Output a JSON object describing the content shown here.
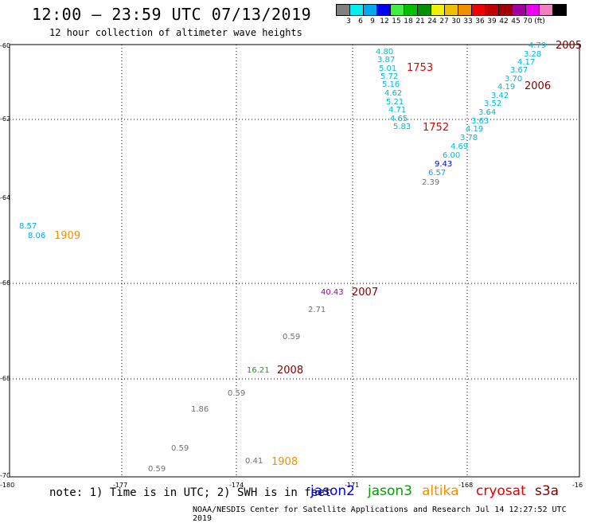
{
  "title": "12:00 – 23:59 UTC 07/13/2019",
  "subtitle": "12 hour collection of altimeter wave heights",
  "colorbar": {
    "colors": [
      "#808080",
      "#00f0f0",
      "#00a8f0",
      "#0000f0",
      "#40f040",
      "#00c000",
      "#009000",
      "#f0f000",
      "#f0c000",
      "#f09000",
      "#f00000",
      "#c00000",
      "#a00000",
      "#a000a0",
      "#f000f0",
      "#f080c0",
      "#000000"
    ],
    "labels": [
      "3",
      "6",
      "9",
      "12",
      "15",
      "18",
      "21",
      "24",
      "27",
      "30",
      "33",
      "36",
      "39",
      "42",
      "45",
      "70",
      "(ft)"
    ]
  },
  "axes": {
    "y_ticks": [
      "-60",
      "-62",
      "-64",
      "-66",
      "-68",
      "-70"
    ],
    "x_ticks": [
      "-180",
      "-177",
      "-174",
      "-171",
      "-168",
      "-16"
    ]
  },
  "readings": [
    {
      "text": "4.80",
      "color": "#00b8d8"
    },
    {
      "text": "3.87",
      "color": "#00b8d8"
    },
    {
      "text": "5.01",
      "color": "#00b8d8"
    },
    {
      "text": "5.72",
      "color": "#00b8d8"
    },
    {
      "text": "5.16",
      "color": "#00b8d8"
    },
    {
      "text": "4.62",
      "color": "#00b8d8"
    },
    {
      "text": "5.21",
      "color": "#00b8d8"
    },
    {
      "text": "4.71",
      "color": "#00b8d8"
    },
    {
      "text": "4.65",
      "color": "#00b8d8"
    },
    {
      "text": "5.83",
      "color": "#00b8d8"
    },
    {
      "text": "4.79",
      "color": "#00b8d8"
    },
    {
      "text": "3.28",
      "color": "#00b8d8"
    },
    {
      "text": "4.17",
      "color": "#00b8d8"
    },
    {
      "text": "3.67",
      "color": "#00b8d8"
    },
    {
      "text": "3.70",
      "color": "#00b8d8"
    },
    {
      "text": "4.19",
      "color": "#00b8d8"
    },
    {
      "text": "3.42",
      "color": "#00b8d8"
    },
    {
      "text": "3.52",
      "color": "#00b8d8"
    },
    {
      "text": "3.64",
      "color": "#00b8d8"
    },
    {
      "text": "3.63",
      "color": "#00b8d8"
    },
    {
      "text": "4.19",
      "color": "#00b8d8"
    },
    {
      "text": "3.78",
      "color": "#00b8d8"
    },
    {
      "text": "4.69",
      "color": "#00b8d8"
    },
    {
      "text": "6.00",
      "color": "#00b8d8"
    },
    {
      "text": "9.43",
      "color": "#0000d0"
    },
    {
      "text": "6.57",
      "color": "#00a8f0"
    },
    {
      "text": "2.39",
      "color": "#707070"
    },
    {
      "text": "8.57",
      "color": "#00a8f0"
    },
    {
      "text": "8.06",
      "color": "#00a8f0"
    },
    {
      "text": "40.43",
      "color": "#a000a0"
    },
    {
      "text": "2.71",
      "color": "#707070"
    },
    {
      "text": "0.59",
      "color": "#707070"
    },
    {
      "text": "16.21",
      "color": "#00b000"
    },
    {
      "text": "0.59",
      "color": "#707070"
    },
    {
      "text": "1.86",
      "color": "#707070"
    },
    {
      "text": "0.59",
      "color": "#707070"
    },
    {
      "text": "0.41",
      "color": "#707070"
    },
    {
      "text": "0.59",
      "color": "#707070"
    }
  ],
  "pass_labels": [
    {
      "text": "1753",
      "color": "#e00000"
    },
    {
      "text": "1752",
      "color": "#e00000"
    },
    {
      "text": "2005",
      "color": "#800000"
    },
    {
      "text": "2006",
      "color": "#800000"
    },
    {
      "text": "1909",
      "color": "#f09000"
    },
    {
      "text": "2007",
      "color": "#800000"
    },
    {
      "text": "2008",
      "color": "#800000"
    },
    {
      "text": "1908",
      "color": "#f09000"
    }
  ],
  "note": "note: 1) Time is in UTC; 2) SWH is in feet",
  "legend": [
    {
      "name": "jason2",
      "color": "#0000e0"
    },
    {
      "name": "jason3",
      "color": "#00a000"
    },
    {
      "name": "altika",
      "color": "#f09000"
    },
    {
      "name": "cryosat",
      "color": "#e00000"
    },
    {
      "name": "s3a",
      "color": "#800000"
    }
  ],
  "credit": "NOAA/NESDIS Center for Satellite Applications and Research    Jul 14 12:27:52 UTC 2019"
}
